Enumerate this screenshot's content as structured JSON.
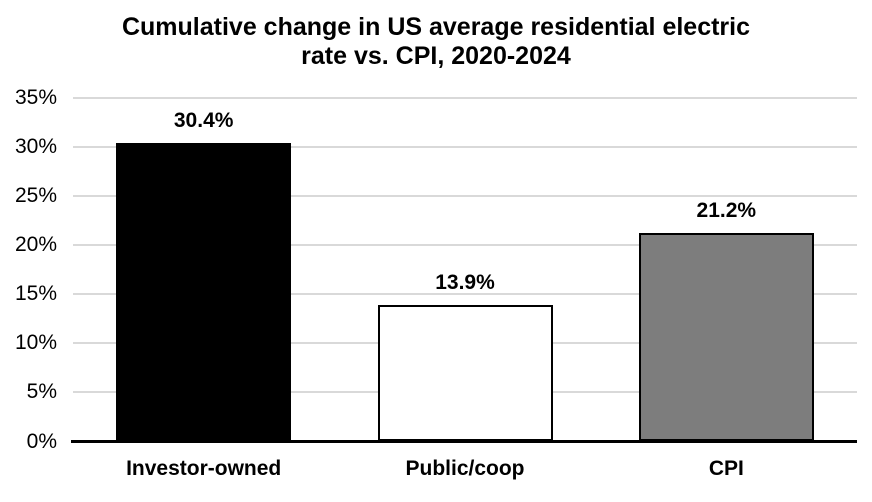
{
  "title": {
    "line1": "Cumulative change in US average residential electric",
    "line2": "rate vs. CPI, 2020-2024"
  },
  "chart_data": {
    "type": "bar",
    "title": "Cumulative change in US average residential electric rate vs. CPI, 2020-2024",
    "categories": [
      "Investor-owned",
      "Public/coop",
      "CPI"
    ],
    "values": [
      30.4,
      13.9,
      21.2
    ],
    "data_labels": [
      "30.4%",
      "13.9%",
      "21.2%"
    ],
    "bar_colors": [
      "#000000",
      "#ffffff",
      "#7d7d7d"
    ],
    "bar_border_color": "#000000",
    "xlabel": "",
    "ylabel": "",
    "ylim": [
      0,
      35
    ],
    "ytick_step": 5,
    "ytick_labels": [
      "0%",
      "5%",
      "10%",
      "15%",
      "20%",
      "25%",
      "30%",
      "35%"
    ],
    "grid": "horizontal",
    "gridline_color": "#d9d9d9",
    "axis_line_color": "#000000",
    "legend_position": "none",
    "background_color": "#ffffff"
  }
}
